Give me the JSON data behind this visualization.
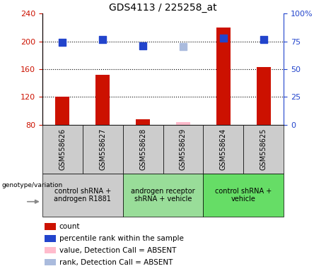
{
  "title": "GDS4113 / 225258_at",
  "samples": [
    "GSM558626",
    "GSM558627",
    "GSM558628",
    "GSM558629",
    "GSM558624",
    "GSM558625"
  ],
  "bar_values": [
    120,
    152,
    88,
    null,
    220,
    163
  ],
  "bar_absent_values": [
    null,
    null,
    null,
    84,
    null,
    null
  ],
  "dot_values": [
    199,
    203,
    193,
    null,
    205,
    203
  ],
  "dot_absent_values": [
    null,
    null,
    null,
    192,
    null,
    null
  ],
  "ylim_left": [
    80,
    240
  ],
  "ylim_right": [
    0,
    100
  ],
  "left_ticks": [
    80,
    120,
    160,
    200,
    240
  ],
  "right_ticks": [
    0,
    25,
    50,
    75,
    100
  ],
  "right_tick_labels": [
    "0",
    "25",
    "50",
    "75",
    "100%"
  ],
  "hlines": [
    120,
    160,
    200
  ],
  "groups": [
    {
      "label": "control shRNA +\nandrogen R1881",
      "color": "#cccccc",
      "span": [
        0,
        2
      ]
    },
    {
      "label": "androgen receptor\nshRNA + vehicle",
      "color": "#99dd99",
      "span": [
        2,
        4
      ]
    },
    {
      "label": "control shRNA +\nvehicle",
      "color": "#66dd66",
      "span": [
        4,
        6
      ]
    }
  ],
  "sample_box_color": "#cccccc",
  "bar_color": "#cc1100",
  "bar_absent_color": "#ffbbcc",
  "dot_color": "#2244cc",
  "dot_absent_color": "#aabbdd",
  "legend_items": [
    {
      "color": "#cc1100",
      "label": "count"
    },
    {
      "color": "#2244cc",
      "label": "percentile rank within the sample"
    },
    {
      "color": "#ffbbcc",
      "label": "value, Detection Call = ABSENT"
    },
    {
      "color": "#aabbdd",
      "label": "rank, Detection Call = ABSENT"
    }
  ],
  "genotype_label": "genotype/variation",
  "bar_width": 0.35,
  "dot_size": 55,
  "title_fontsize": 10,
  "tick_fontsize": 8,
  "sample_fontsize": 7,
  "legend_fontsize": 7.5,
  "group_fontsize": 7
}
